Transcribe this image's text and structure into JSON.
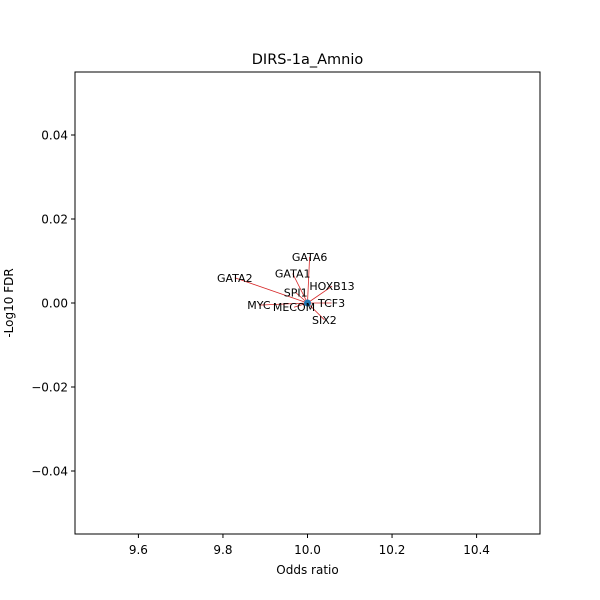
{
  "chart_data": {
    "type": "scatter",
    "title": "DIRS-1a_Amnio",
    "xlabel": "Odds ratio",
    "ylabel": "-Log10 FDR",
    "xlim": [
      9.45,
      10.55
    ],
    "ylim": [
      -0.055,
      0.055
    ],
    "xticks": [
      9.6,
      9.8,
      10.0,
      10.2,
      10.4
    ],
    "xtick_labels": [
      "9.6",
      "9.8",
      "10.0",
      "10.2",
      "10.4"
    ],
    "yticks": [
      0.04,
      0.02,
      0.0,
      -0.02,
      -0.04
    ],
    "ytick_labels": [
      "0.04",
      "0.02",
      "0.00",
      "−0.02",
      "−0.04"
    ],
    "grid": false,
    "legend": "none",
    "point_color": "#1f77b4",
    "line_color": "#d62728",
    "points": [
      {
        "x": 10.0,
        "y": 0.0
      }
    ],
    "annotations": [
      {
        "label": "GATA6",
        "x": 10.0,
        "y": 0.0,
        "tx": 10.005,
        "ty": 0.011
      },
      {
        "label": "GATA1",
        "x": 10.0,
        "y": 0.0,
        "tx": 9.965,
        "ty": 0.007
      },
      {
        "label": "GATA2",
        "x": 10.0,
        "y": 0.0,
        "tx": 9.828,
        "ty": 0.006
      },
      {
        "label": "HOXB13",
        "x": 10.0,
        "y": 0.0,
        "tx": 10.058,
        "ty": 0.004
      },
      {
        "label": "SPI1",
        "x": 10.0,
        "y": 0.0,
        "tx": 9.972,
        "ty": 0.0025
      },
      {
        "label": "TCF3",
        "x": 10.0,
        "y": 0.0,
        "tx": 10.057,
        "ty": 0.0
      },
      {
        "label": "MYC",
        "x": 10.0,
        "y": 0.0,
        "tx": 9.885,
        "ty": -0.0005
      },
      {
        "label": "MECOM",
        "x": 10.0,
        "y": 0.0,
        "tx": 9.968,
        "ty": -0.001
      },
      {
        "label": "SIX2",
        "x": 10.0,
        "y": 0.0,
        "tx": 10.04,
        "ty": -0.004
      }
    ]
  }
}
